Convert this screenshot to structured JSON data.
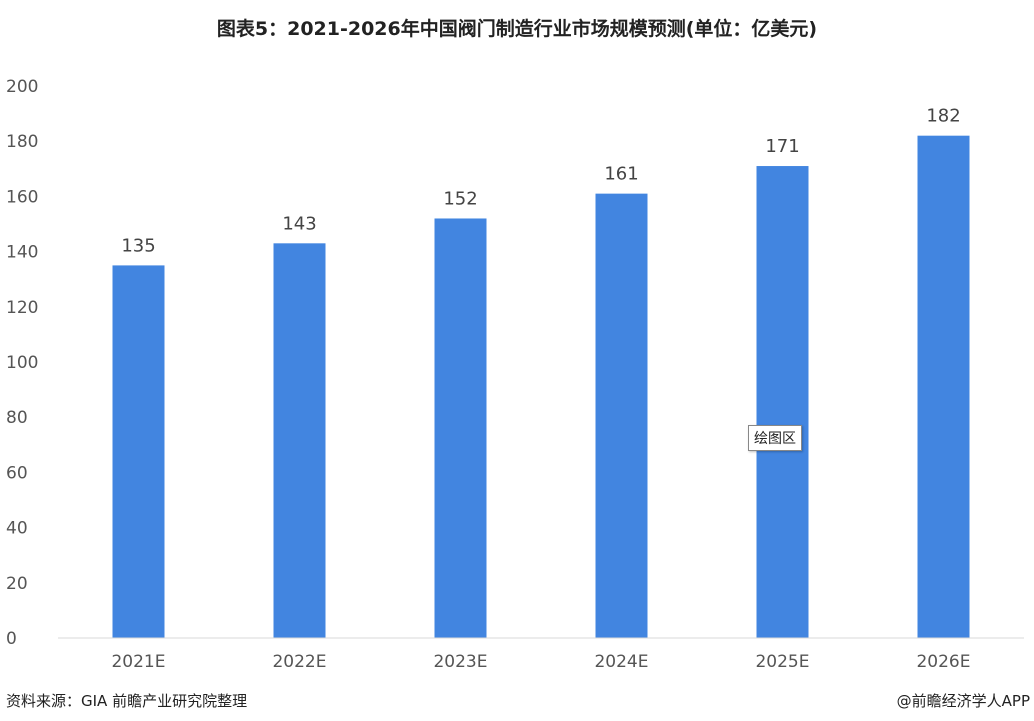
{
  "chart_data": {
    "type": "bar",
    "title": "图表5：2021-2026年中国阀门制造行业市场规模预测(单位：亿美元)",
    "categories": [
      "2021E",
      "2022E",
      "2023E",
      "2024E",
      "2025E",
      "2026E"
    ],
    "values": [
      135,
      143,
      152,
      161,
      171,
      182
    ],
    "ylim": [
      0,
      200
    ],
    "yticks": [
      0,
      20,
      40,
      60,
      80,
      100,
      120,
      140,
      160,
      180,
      200
    ],
    "xlabel": "",
    "ylabel": "",
    "grid": false,
    "bar_color": "#4285E0",
    "axis_color": "#D9D9D9"
  },
  "footer": {
    "source": "资料来源：GIA 前瞻产业研究院整理",
    "credit": "@前瞻经济学人APP"
  },
  "tooltip": {
    "label": "绘图区"
  }
}
